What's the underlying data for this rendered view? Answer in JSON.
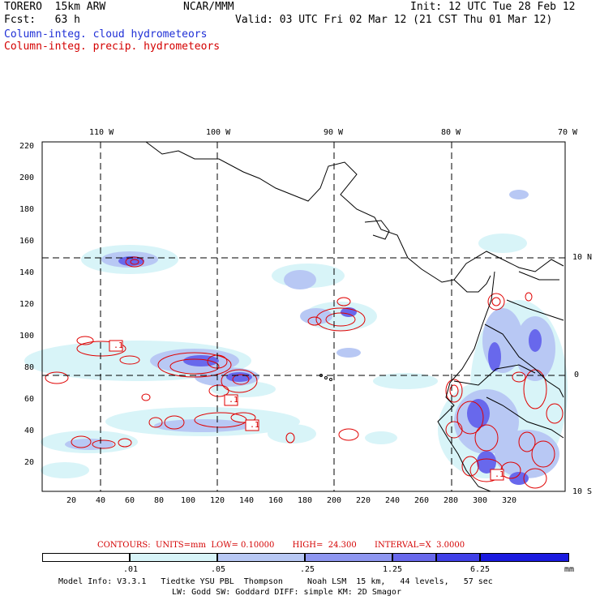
{
  "header": {
    "model": "TORERO  15km ARW",
    "org": "NCAR/MMM",
    "init": "Init: 12 UTC Tue 28 Feb 12",
    "fcst": "Fcst:   63 h",
    "valid": "Valid: 03 UTC Fri 02 Mar 12 (21 CST Thu 01 Mar 12)",
    "field1": "Column-integ. cloud hydrometeors",
    "field2": "Column-integ. precip. hydrometeors"
  },
  "map": {
    "lon_labels": [
      "110 W",
      "100 W",
      "90 W",
      "80 W",
      "70 W"
    ],
    "lat_labels": [
      "10 N",
      "0",
      "10 S"
    ],
    "y_ticks": [
      "220",
      "200",
      "180",
      "160",
      "140",
      "120",
      "100",
      "80",
      "60",
      "40",
      "20"
    ],
    "x_ticks": [
      "20",
      "40",
      "60",
      "80",
      "100",
      "120",
      "140",
      "160",
      "180",
      "200",
      "220",
      "240",
      "260",
      "280",
      "300",
      "320"
    ],
    "contour_labels": [
      ".1",
      ".1",
      ".1",
      ".1"
    ],
    "colors": {
      "land": "#000000",
      "grid": "#000000",
      "precip_contour": "#e00000"
    }
  },
  "legend": {
    "contours_text": "CONTOURS:  UNITS=mm  LOW= 0.10000       HIGH=  24.300       INTERVAL=X  3.0000",
    "values": [
      ".01",
      ".05",
      ".25",
      "1.25",
      "6.25"
    ],
    "unit": "mm",
    "colors": [
      "#ffffff",
      "#d8f4f8",
      "#b8c8f4",
      "#8e96f0",
      "#6868ec",
      "#4040e8",
      "#1a1ae0"
    ]
  },
  "footer": {
    "line1": "Model Info: V3.3.1   Tiedtke YSU PBL  Thompson     Noah LSM  15 km,   44 levels,   57 sec",
    "line2": "LW: Godd SW: Goddard DIFF: simple KM: 2D Smagor"
  }
}
